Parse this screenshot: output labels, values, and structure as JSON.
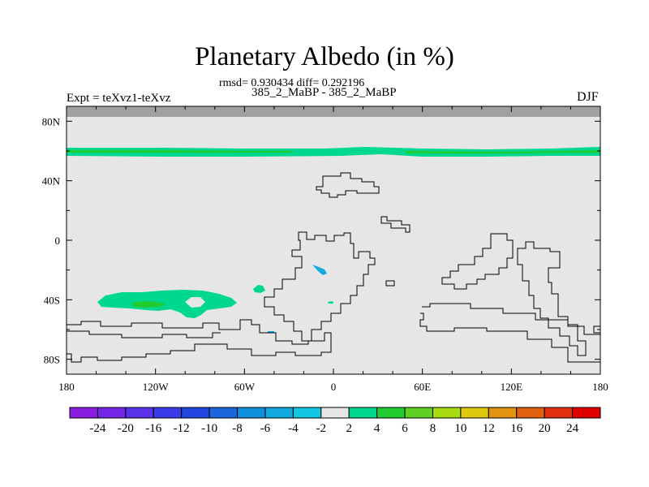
{
  "chart_data": {
    "type": "heatmap",
    "title": "Planetary Albedo (in %)",
    "stats_text": "rmsd= 0.930434 diff= 0.292196",
    "comparison": "385_2_MaBP - 385_2_MaBP",
    "left_label": "Expt = teXvz1-teXvz",
    "right_label": "DJF",
    "x_range": [
      -180,
      180
    ],
    "y_range": [
      -90,
      90
    ],
    "x_ticks": [
      "180",
      "120W",
      "60W",
      "0",
      "60E",
      "120E",
      "180"
    ],
    "y_ticks": [
      "80N",
      "40N",
      "0",
      "40S",
      "80S"
    ],
    "colorbar_labels": [
      "-24",
      "-20",
      "-16",
      "-12",
      "-10",
      "-8",
      "-6",
      "-4",
      "-2",
      "2",
      "4",
      "6",
      "8",
      "10",
      "12",
      "16",
      "20",
      "24"
    ],
    "colorbar_colors": [
      "#8a1ee0",
      "#7426e6",
      "#5a32ea",
      "#3a3ce8",
      "#2446e0",
      "#1a66dc",
      "#1090dc",
      "#12a8e0",
      "#10c6e0",
      "#e6e6e6",
      "#00d890",
      "#20cc30",
      "#60d020",
      "#a8dc10",
      "#e0c810",
      "#e09410",
      "#e06010",
      "#e03010",
      "#e00000"
    ],
    "background_color": "#e6e6e6",
    "missing_color": "#a0a0a0"
  }
}
